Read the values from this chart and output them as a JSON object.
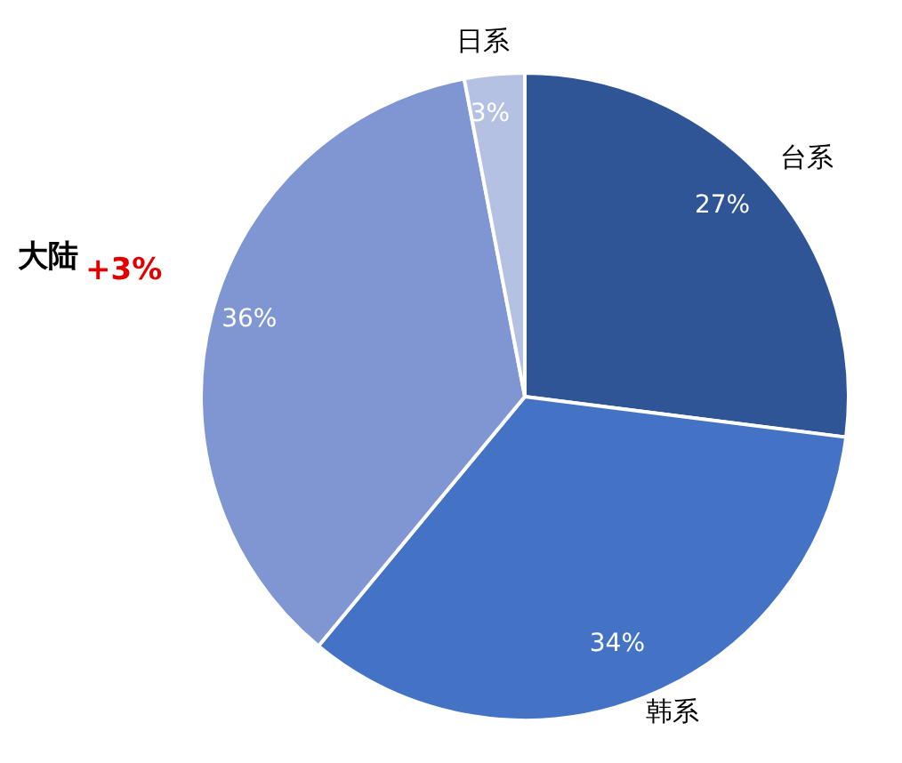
{
  "chart_data": {
    "type": "pie",
    "categories": [
      "台系",
      "韩系",
      "大陆",
      "日系"
    ],
    "values": [
      27,
      34,
      36,
      3
    ],
    "value_labels": [
      "27%",
      "34%",
      "36%",
      "3%"
    ],
    "colors": [
      "#2f5597",
      "#4472c4",
      "#7f96d2",
      "#b4c1e2"
    ],
    "annotations": [
      "+3%"
    ],
    "legend": false
  }
}
